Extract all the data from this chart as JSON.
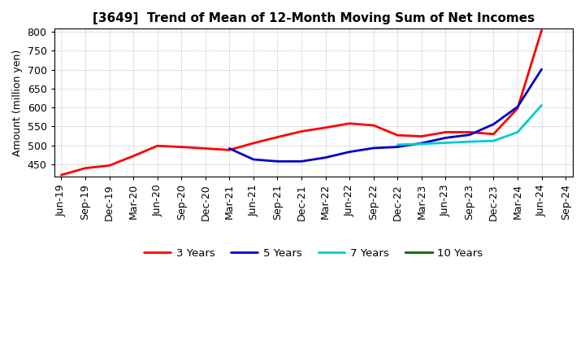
{
  "title": "[3649]  Trend of Mean of 12-Month Moving Sum of Net Incomes",
  "ylabel": "Amount (million yen)",
  "ylim": [
    418,
    808
  ],
  "yticks": [
    450,
    500,
    550,
    600,
    650,
    700,
    750,
    800
  ],
  "background_color": "#ffffff",
  "grid_color": "#aaaaaa",
  "x_labels": [
    "Jun-19",
    "Sep-19",
    "Dec-19",
    "Mar-20",
    "Jun-20",
    "Sep-20",
    "Dec-20",
    "Mar-21",
    "Jun-21",
    "Sep-21",
    "Dec-21",
    "Mar-22",
    "Jun-22",
    "Sep-22",
    "Dec-22",
    "Mar-23",
    "Jun-23",
    "Sep-23",
    "Dec-23",
    "Mar-24",
    "Jun-24",
    "Sep-24"
  ],
  "series": {
    "3 Years": {
      "color": "#ff0000",
      "values": [
        422,
        440,
        447,
        472,
        499,
        496,
        492,
        488,
        506,
        522,
        537,
        547,
        558,
        553,
        527,
        524,
        535,
        535,
        530,
        598,
        804,
        null
      ]
    },
    "5 Years": {
      "color": "#0000cc",
      "values": [
        null,
        null,
        null,
        null,
        null,
        null,
        null,
        492,
        463,
        458,
        458,
        468,
        483,
        493,
        496,
        506,
        520,
        528,
        556,
        602,
        701,
        null
      ]
    },
    "7 Years": {
      "color": "#00cccc",
      "values": [
        null,
        null,
        null,
        null,
        null,
        null,
        null,
        null,
        null,
        null,
        null,
        null,
        null,
        null,
        502,
        504,
        507,
        510,
        512,
        535,
        606,
        null
      ]
    },
    "10 Years": {
      "color": "#006600",
      "values": [
        null,
        null,
        null,
        null,
        null,
        null,
        null,
        null,
        null,
        null,
        null,
        null,
        null,
        null,
        null,
        null,
        null,
        null,
        null,
        null,
        null,
        null
      ]
    }
  },
  "legend_order": [
    "3 Years",
    "5 Years",
    "7 Years",
    "10 Years"
  ],
  "title_fontsize": 11,
  "axis_fontsize": 9,
  "tick_fontsize": 9,
  "legend_fontsize": 9.5
}
